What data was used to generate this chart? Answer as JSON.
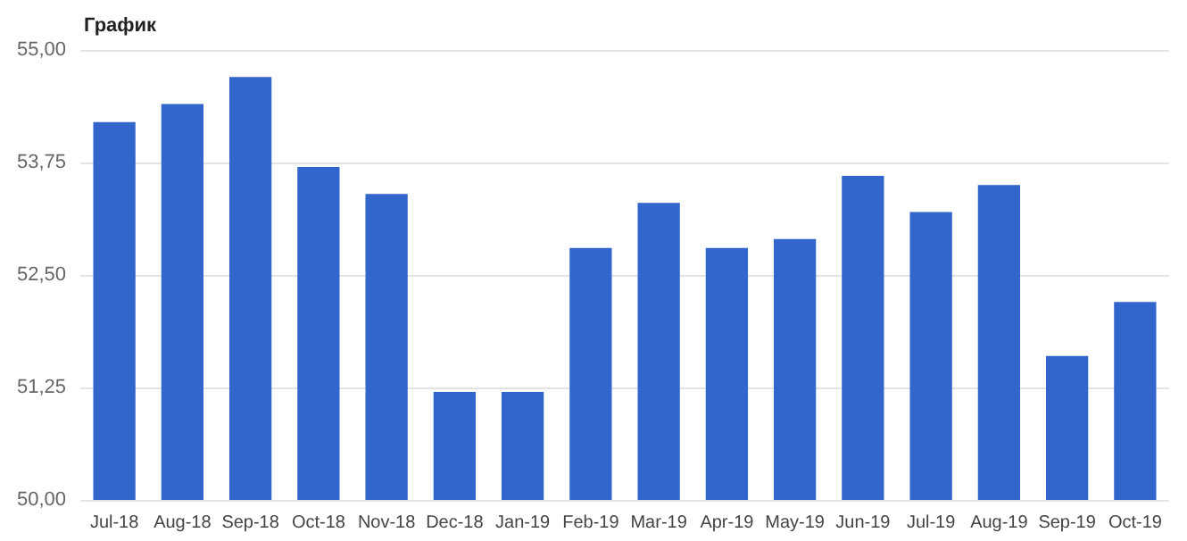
{
  "chart_data": {
    "type": "bar",
    "title": "График",
    "categories": [
      "Jul-18",
      "Aug-18",
      "Sep-18",
      "Oct-18",
      "Nov-18",
      "Dec-18",
      "Jan-19",
      "Feb-19",
      "Mar-19",
      "Apr-19",
      "May-19",
      "Jun-19",
      "Jul-19",
      "Aug-19",
      "Sep-19",
      "Oct-19"
    ],
    "values": [
      54.2,
      54.4,
      54.7,
      53.7,
      53.4,
      51.2,
      51.2,
      52.8,
      53.3,
      52.8,
      52.9,
      53.6,
      53.2,
      53.5,
      51.6,
      52.2
    ],
    "color": "#3366cc",
    "ylim": [
      50,
      55
    ],
    "yticks": [
      {
        "value": 50,
        "label": "50,00"
      },
      {
        "value": 51.25,
        "label": "51,25"
      },
      {
        "value": 52.5,
        "label": "52,50"
      },
      {
        "value": 53.75,
        "label": "53,75"
      },
      {
        "value": 55,
        "label": "55,00"
      }
    ],
    "grid": "y"
  }
}
